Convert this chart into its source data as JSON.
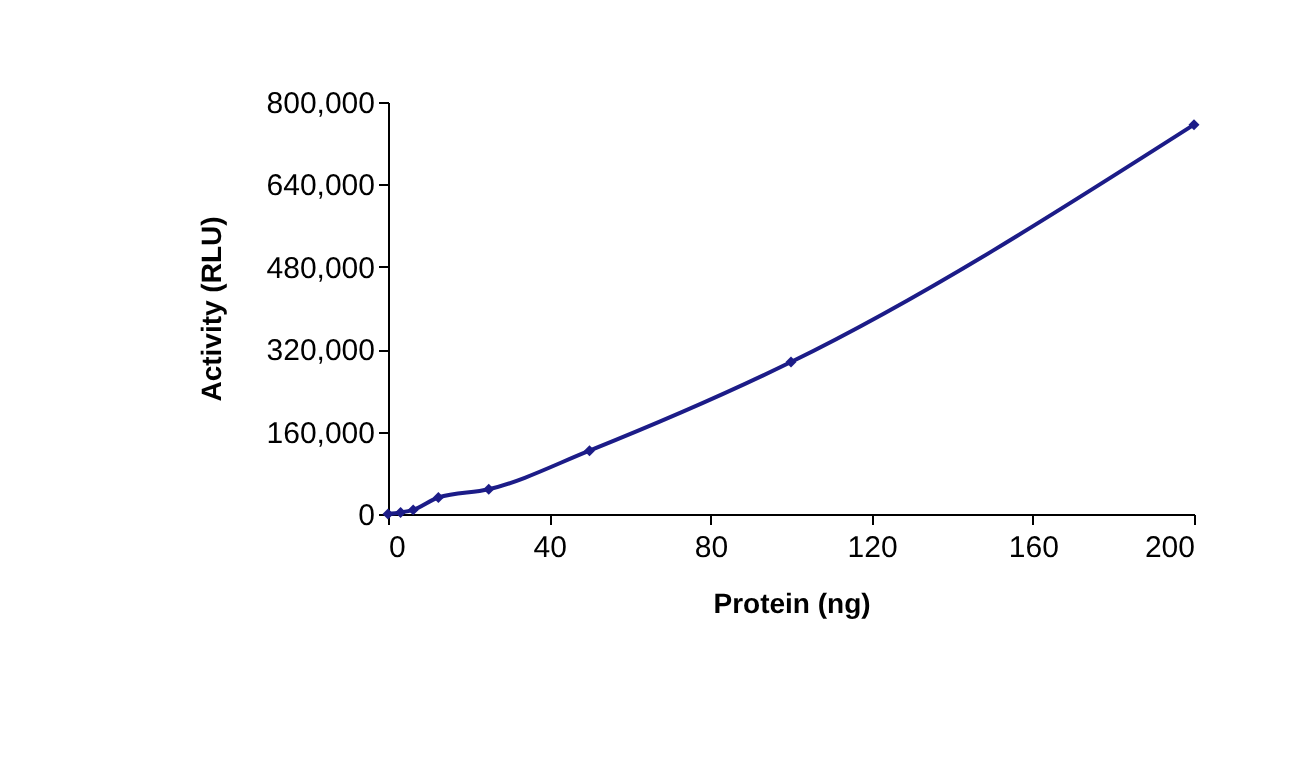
{
  "chart_data": {
    "type": "line",
    "xlabel": "Protein (ng)",
    "ylabel": "Activity (RLU)",
    "x": [
      0,
      3.125,
      6.25,
      12.5,
      25,
      50,
      100,
      200
    ],
    "series": [
      {
        "color": "#1c1c88",
        "values": [
          0,
          3000,
          8000,
          32000,
          48000,
          123000,
          295000,
          756000
        ]
      }
    ],
    "xlim": [
      0,
      200
    ],
    "xticks": [
      0,
      40,
      80,
      120,
      160,
      200
    ],
    "ylim": [
      0,
      800000
    ],
    "yticks": [
      0,
      {
        "value": 160000,
        "label": "160,000"
      },
      {
        "value": 320000,
        "label": "320,000"
      },
      {
        "value": 480000,
        "label": "480,000"
      },
      {
        "value": 640000,
        "label": "640,000"
      },
      {
        "value": 800000,
        "label": "800,000"
      }
    ],
    "grid": false,
    "legend": false,
    "marker": "diamond",
    "line_style": "solid"
  }
}
